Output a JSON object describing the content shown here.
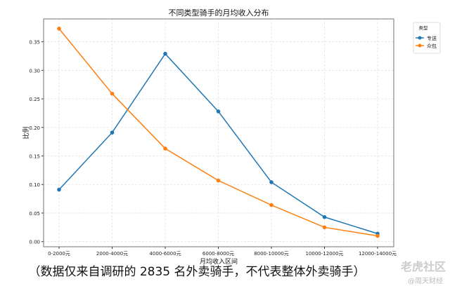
{
  "chart_data": {
    "type": "line",
    "title": "不同类型骑手的月均收入分布",
    "xlabel": "月均收入区间",
    "ylabel": "比例",
    "categories": [
      "0-2000元",
      "2000-4000元",
      "4000-6000元",
      "6000-8000元",
      "8000-10000元",
      "10000-12000元",
      "12000-14000元"
    ],
    "yticks": [
      "0.00",
      "0.05",
      "0.10",
      "0.15",
      "0.20",
      "0.25",
      "0.30",
      "0.35"
    ],
    "ylim": [
      -0.009,
      0.39
    ],
    "grid": true,
    "legend": {
      "title": "类型",
      "placement": "outside-top-right"
    },
    "series": [
      {
        "name": "专送",
        "color": "#1f77b4",
        "values": [
          0.091,
          0.191,
          0.329,
          0.228,
          0.104,
          0.043,
          0.014
        ]
      },
      {
        "name": "众包",
        "color": "#ff7f0e",
        "values": [
          0.373,
          0.259,
          0.163,
          0.107,
          0.064,
          0.025,
          0.01
        ]
      }
    ]
  },
  "caption": "（数据仅来自调研的 2835 名外卖骑手，不代表整体外卖骑手）",
  "watermark": {
    "main": "老虎社区",
    "sub": "@周天财经"
  }
}
